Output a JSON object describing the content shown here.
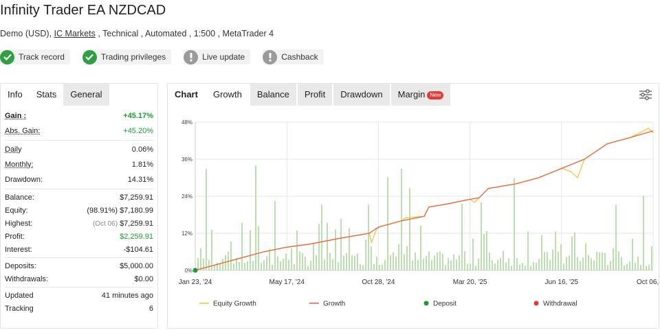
{
  "header": {
    "title": "Infinity Trader EA NZDCAD",
    "subtitle_prefix": "Demo (USD), ",
    "broker_link": "IC Markets",
    "subtitle_suffix": " , Technical , Automated , 1:500 , MetaTrader 4"
  },
  "badges": [
    {
      "label": "Track record",
      "icon": "check-icon",
      "status": "verified",
      "color": "#2ea043"
    },
    {
      "label": "Trading privileges",
      "icon": "check-icon",
      "status": "verified",
      "color": "#2ea043"
    },
    {
      "label": "Live update",
      "icon": "exclamation-icon",
      "status": "unverified",
      "color": "#9a9a9a"
    },
    {
      "label": "Cashback",
      "icon": "exclamation-icon",
      "status": "unverified",
      "color": "#9a9a9a"
    }
  ],
  "left_tabs": [
    "Info",
    "Stats",
    "General"
  ],
  "stats": {
    "gain_label": "Gain :",
    "gain_value": "+45.17%",
    "abs_gain_label": "Abs. Gain:",
    "abs_gain_value": "+45.20%",
    "daily_label": "Daily",
    "daily_value": "0.06%",
    "monthly_label": "Monthly:",
    "monthly_value": "1.81%",
    "drawdown_label": "Drawdown:",
    "drawdown_value": "14.31%",
    "balance_label": "Balance:",
    "balance_value": "$7,259.91",
    "equity_label": "Equity:",
    "equity_pct": "(98.91%)",
    "equity_value": "$7,180.99",
    "highest_label": "Highest:",
    "highest_date": "(Oct 06)",
    "highest_value": "$7,259.91",
    "profit_label": "Profit:",
    "profit_value": "$2,259.91",
    "interest_label": "Interest:",
    "interest_value": "-$104.61",
    "deposits_label": "Deposits:",
    "deposits_value": "$5,000.00",
    "withdrawals_label": "Withdrawals:",
    "withdrawals_value": "$0.00",
    "updated_label": "Updated",
    "updated_value": "41 minutes ago",
    "tracking_label": "Tracking",
    "tracking_value": "6"
  },
  "chart_tabs": {
    "chart": "Chart",
    "growth": "Growth",
    "balance": "Balance",
    "profit": "Profit",
    "drawdown": "Drawdown",
    "margin": "Margin",
    "new_badge": "New"
  },
  "chart_data": {
    "type": "line",
    "y_ticks": [
      "0%",
      "12%",
      "24%",
      "36%",
      "48%"
    ],
    "ylim": [
      0,
      48
    ],
    "x_ticks": [
      "Jan 23, '24",
      "May 17, '24",
      "Oct 28, '24",
      "Mar 20, '25",
      "Jun 16, '25",
      "Oct 06, '25"
    ],
    "legend": [
      "Equity Growth",
      "Growth",
      "Deposit",
      "Withdrawal"
    ],
    "colors": {
      "equity": "#f2c12e",
      "growth": "#e8633a",
      "deposit": "#1a9e2f",
      "withdrawal": "#e53935",
      "bars": "#b9e0ac",
      "grid": "#e6e6e6"
    },
    "series": [
      {
        "name": "Growth",
        "x": [
          0,
          0.05,
          0.1,
          0.15,
          0.2,
          0.25,
          0.32,
          0.38,
          0.4,
          0.45,
          0.5,
          0.51,
          0.55,
          0.6,
          0.62,
          0.64,
          0.7,
          0.75,
          0.8,
          0.85,
          0.9,
          0.95,
          1.0
        ],
        "values": [
          0,
          2,
          4,
          6,
          7.5,
          8.5,
          10.5,
          12,
          14,
          16,
          17.5,
          20.5,
          21.5,
          23,
          23.5,
          26.5,
          28,
          30,
          33,
          36,
          41,
          43,
          45.17
        ]
      },
      {
        "name": "Equity Growth",
        "x": [
          0,
          0.05,
          0.1,
          0.15,
          0.2,
          0.25,
          0.32,
          0.38,
          0.385,
          0.395,
          0.4,
          0.45,
          0.46,
          0.5,
          0.51,
          0.55,
          0.6,
          0.61,
          0.62,
          0.64,
          0.7,
          0.75,
          0.8,
          0.82,
          0.835,
          0.85,
          0.9,
          0.95,
          0.99,
          1.0
        ],
        "values": [
          0,
          2,
          4,
          6,
          7.5,
          8.5,
          10.5,
          12,
          9,
          13,
          14,
          16,
          17,
          17.5,
          20.5,
          21.5,
          23,
          22,
          23.5,
          26.5,
          28,
          30,
          33,
          32,
          30,
          36,
          41,
          43,
          46,
          44.5
        ]
      }
    ],
    "deposit": {
      "x": 0,
      "value": 0
    }
  }
}
